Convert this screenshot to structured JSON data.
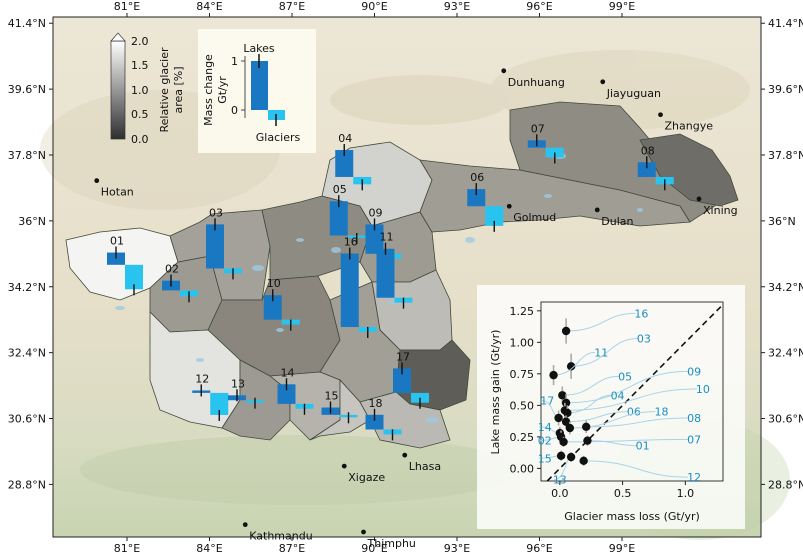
{
  "axes": {
    "lon_ticks": [
      {
        "value": 81,
        "label": "81°E"
      },
      {
        "value": 84,
        "label": "84°E"
      },
      {
        "value": 87,
        "label": "87°E"
      },
      {
        "value": 90,
        "label": "90°E"
      },
      {
        "value": 93,
        "label": "93°E"
      },
      {
        "value": 96,
        "label": "96°E"
      },
      {
        "value": 99,
        "label": "99°E"
      }
    ],
    "lat_ticks": [
      {
        "value": 41.4,
        "label": "41.4°N"
      },
      {
        "value": 39.6,
        "label": "39.6°N"
      },
      {
        "value": 37.8,
        "label": "37.8°N"
      },
      {
        "value": 36.0,
        "label": "36°N"
      },
      {
        "value": 34.2,
        "label": "34.2°N"
      },
      {
        "value": 32.4,
        "label": "32.4°N"
      },
      {
        "value": 30.6,
        "label": "30.6°N"
      },
      {
        "value": 28.8,
        "label": "28.8°N"
      }
    ]
  },
  "colorbar": {
    "label_line1": "Relative glacier",
    "label_line2": "area [%]",
    "ticks": [
      "2.0",
      "1.5",
      "1.0",
      "0.5",
      "0.0"
    ]
  },
  "legend_inset": {
    "ylabel_line1": "Mass change",
    "ylabel_line2": "Gt/yr",
    "lakes_label": "Lakes",
    "glaciers_label": "Glaciers",
    "ticks": [
      "1",
      "0"
    ],
    "lake_color": "#1a78c2",
    "glacier_color": "#29c3ef"
  },
  "cities": [
    {
      "name": "Dunhuang",
      "lon": 94.7,
      "lat": 40.1
    },
    {
      "name": "Jiayuguan",
      "lon": 98.3,
      "lat": 39.8
    },
    {
      "name": "Zhangye",
      "lon": 100.4,
      "lat": 38.9
    },
    {
      "name": "Xining",
      "lon": 101.8,
      "lat": 36.6
    },
    {
      "name": "Golmud",
      "lon": 94.9,
      "lat": 36.4
    },
    {
      "name": "Dulan",
      "lon": 98.1,
      "lat": 36.3
    },
    {
      "name": "Hotan",
      "lon": 79.9,
      "lat": 37.1
    },
    {
      "name": "Lhasa",
      "lon": 91.1,
      "lat": 29.6
    },
    {
      "name": "Xigaze",
      "lon": 88.9,
      "lat": 29.3
    },
    {
      "name": "Kathmandu",
      "lon": 85.3,
      "lat": 27.7
    },
    {
      "name": "Thimphu",
      "lon": 89.6,
      "lat": 27.5
    }
  ],
  "regions": [
    {
      "id": "01",
      "lon": 80.6,
      "lat": 34.8,
      "lake": 0.25,
      "glacier": 0.5
    },
    {
      "id": "02",
      "lon": 82.6,
      "lat": 34.1,
      "lake": 0.2,
      "glacier": 0.12
    },
    {
      "id": "03",
      "lon": 84.2,
      "lat": 34.7,
      "lake": 0.9,
      "glacier": 0.1
    },
    {
      "id": "04",
      "lon": 88.9,
      "lat": 37.2,
      "lake": 0.55,
      "glacier": 0.15
    },
    {
      "id": "05",
      "lon": 88.7,
      "lat": 35.6,
      "lake": 0.7,
      "glacier": 0.05
    },
    {
      "id": "06",
      "lon": 93.7,
      "lat": 36.4,
      "lake": 0.35,
      "glacier": 0.4
    },
    {
      "id": "07",
      "lon": 95.9,
      "lat": 38.0,
      "lake": 0.15,
      "glacier": 0.2
    },
    {
      "id": "08",
      "lon": 99.9,
      "lat": 37.2,
      "lake": 0.3,
      "glacier": 0.15
    },
    {
      "id": "09",
      "lon": 90.0,
      "lat": 35.1,
      "lake": 0.6,
      "glacier": 0.1
    },
    {
      "id": "10",
      "lon": 86.3,
      "lat": 33.3,
      "lake": 0.5,
      "glacier": 0.1
    },
    {
      "id": "11",
      "lon": 90.4,
      "lat": 33.9,
      "lake": 1.0,
      "glacier": 0.1
    },
    {
      "id": "12",
      "lon": 83.7,
      "lat": 31.3,
      "lake": 0.05,
      "glacier": 0.45
    },
    {
      "id": "13",
      "lon": 85.0,
      "lat": 31.1,
      "lake": 0.1,
      "glacier": 0.05
    },
    {
      "id": "14",
      "lon": 86.8,
      "lat": 31.0,
      "lake": 0.4,
      "glacier": 0.1
    },
    {
      "id": "15",
      "lon": 88.4,
      "lat": 30.7,
      "lake": 0.15,
      "glacier": 0.05
    },
    {
      "id": "16",
      "lon": 89.1,
      "lat": 33.1,
      "lake": 1.5,
      "glacier": 0.1
    },
    {
      "id": "17",
      "lon": 91.0,
      "lat": 31.3,
      "lake": 0.5,
      "glacier": 0.2
    },
    {
      "id": "18",
      "lon": 90.0,
      "lat": 30.3,
      "lake": 0.3,
      "glacier": 0.1
    }
  ],
  "scatter": {
    "xlabel": "Glacier mass loss (Gt/yr)",
    "ylabel": "Lake mass gain (Gt/yr)",
    "xlim": [
      -0.15,
      1.3
    ],
    "ylim": [
      -0.1,
      1.32
    ],
    "xticks": [
      {
        "v": 0.0,
        "label": "0.0"
      },
      {
        "v": 0.5,
        "label": "0.5"
      },
      {
        "v": 1.0,
        "label": "1.0"
      }
    ],
    "yticks": [
      {
        "v": 0.0,
        "label": "0.00"
      },
      {
        "v": 0.25,
        "label": "0.25"
      },
      {
        "v": 0.5,
        "label": "0.50"
      },
      {
        "v": 0.75,
        "label": "0.75"
      },
      {
        "v": 1.0,
        "label": "1.00"
      },
      {
        "v": 1.25,
        "label": "1.25"
      }
    ],
    "label_color": "#1a8fc4",
    "points": [
      {
        "id": "16",
        "x": 0.05,
        "y": 1.09,
        "err": 0.1,
        "lx": 0.65,
        "ly": 1.23
      },
      {
        "id": "03",
        "x": 0.09,
        "y": 0.81,
        "err": 0.1,
        "lx": 0.67,
        "ly": 1.03
      },
      {
        "id": "11",
        "x": -0.05,
        "y": 0.74,
        "err": 0.08,
        "lx": 0.33,
        "ly": 0.92
      },
      {
        "id": "05",
        "x": 0.02,
        "y": 0.58,
        "err": 0.07,
        "lx": 0.52,
        "ly": 0.73
      },
      {
        "id": "09",
        "x": 0.05,
        "y": 0.52,
        "err": 0.07,
        "lx": 1.07,
        "ly": 0.77
      },
      {
        "id": "10",
        "x": 0.04,
        "y": 0.46,
        "err": 0.06,
        "lx": 1.14,
        "ly": 0.63
      },
      {
        "id": "04",
        "x": 0.06,
        "y": 0.44,
        "err": 0.06,
        "lx": 0.46,
        "ly": 0.58
      },
      {
        "id": "17",
        "x": -0.01,
        "y": 0.4,
        "err": 0.06,
        "lx": -0.1,
        "ly": 0.54
      },
      {
        "id": "06",
        "x": 0.05,
        "y": 0.37,
        "err": 0.05,
        "lx": 0.59,
        "ly": 0.45
      },
      {
        "id": "18",
        "x": 0.08,
        "y": 0.32,
        "err": 0.05,
        "lx": 0.81,
        "ly": 0.45
      },
      {
        "id": "08",
        "x": 0.21,
        "y": 0.33,
        "err": 0.05,
        "lx": 1.07,
        "ly": 0.4
      },
      {
        "id": "14",
        "x": 0.0,
        "y": 0.28,
        "err": 0.05,
        "lx": -0.12,
        "ly": 0.33
      },
      {
        "id": "02",
        "x": 0.01,
        "y": 0.25,
        "err": 0.05,
        "lx": -0.12,
        "ly": 0.22
      },
      {
        "id": "07",
        "x": 0.03,
        "y": 0.21,
        "err": 0.04,
        "lx": 1.07,
        "ly": 0.23
      },
      {
        "id": "01",
        "x": 0.22,
        "y": 0.22,
        "err": 0.04,
        "lx": 0.66,
        "ly": 0.18
      },
      {
        "id": "15",
        "x": 0.01,
        "y": 0.1,
        "err": 0.04,
        "lx": -0.12,
        "ly": 0.08
      },
      {
        "id": "13",
        "x": 0.09,
        "y": 0.09,
        "err": 0.04,
        "lx": 0.0,
        "ly": -0.09
      },
      {
        "id": "12",
        "x": 0.19,
        "y": 0.06,
        "err": 0.04,
        "lx": 1.07,
        "ly": -0.07
      }
    ]
  }
}
